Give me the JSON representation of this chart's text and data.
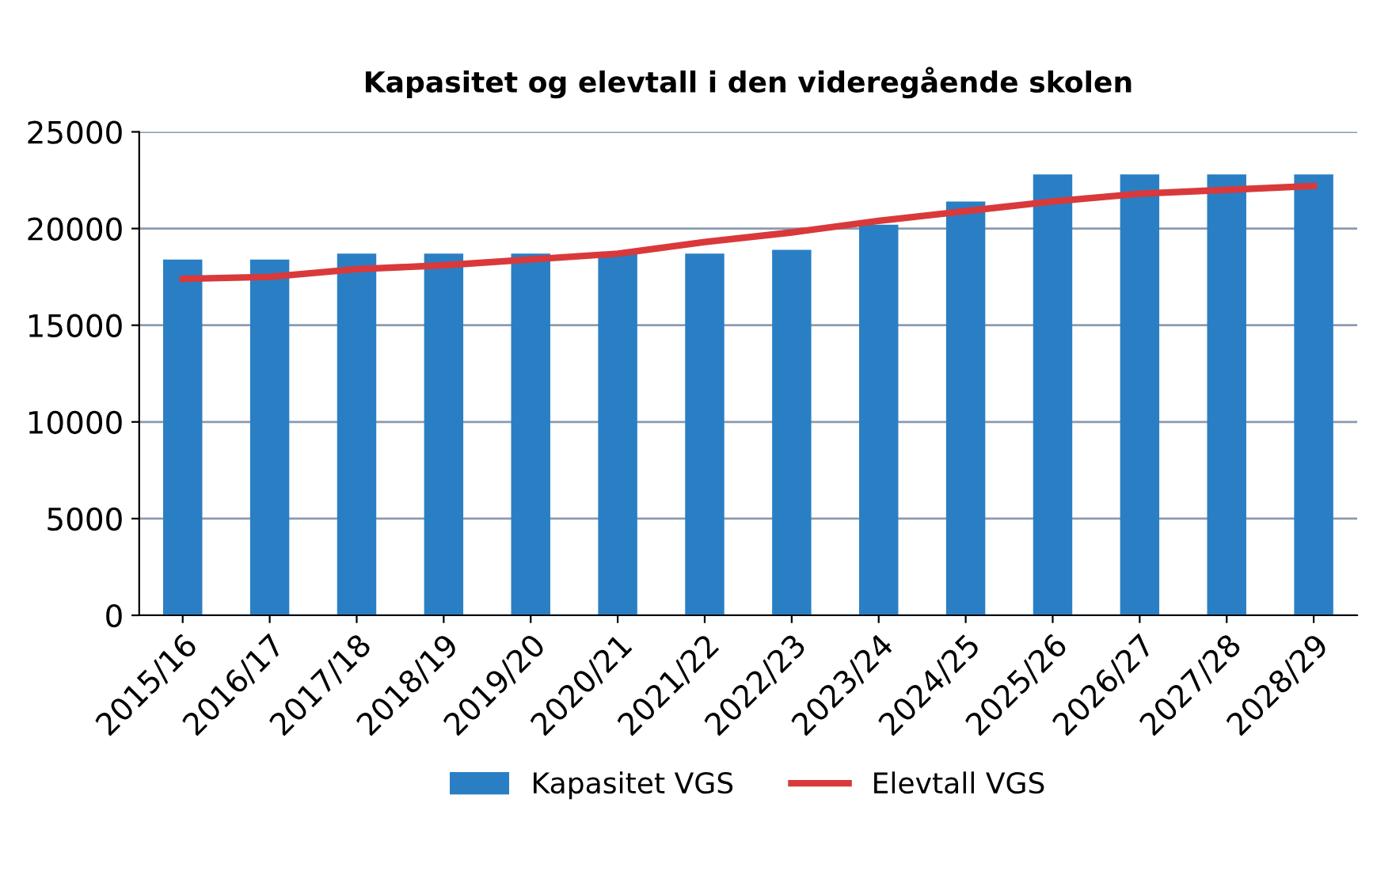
{
  "chart_data": {
    "type": "bar",
    "title": "Kapasitet og elevtall i den videregående skolen",
    "categories": [
      "2015/16",
      "2016/17",
      "2017/18",
      "2018/19",
      "2019/20",
      "2020/21",
      "2021/22",
      "2022/23",
      "2023/24",
      "2024/25",
      "2025/26",
      "2026/27",
      "2027/28",
      "2028/29"
    ],
    "series": [
      {
        "name": "Kapasitet VGS",
        "color": "#2a7fc4",
        "values": [
          18400,
          18400,
          18700,
          18700,
          18700,
          18700,
          18700,
          18900,
          20200,
          21400,
          22800,
          22800,
          22800,
          22800
        ]
      },
      {
        "name": "Elevtall VGS",
        "type": "line",
        "color": "#d9393b",
        "values": [
          17400,
          17500,
          17900,
          18100,
          18400,
          18700,
          19300,
          19800,
          20400,
          20900,
          21400,
          21800,
          22000,
          22200
        ]
      }
    ],
    "ylim": [
      0,
      25000
    ],
    "yticks": [
      0,
      5000,
      10000,
      15000,
      20000,
      25000
    ],
    "grid": "y",
    "legend": "bottom"
  }
}
